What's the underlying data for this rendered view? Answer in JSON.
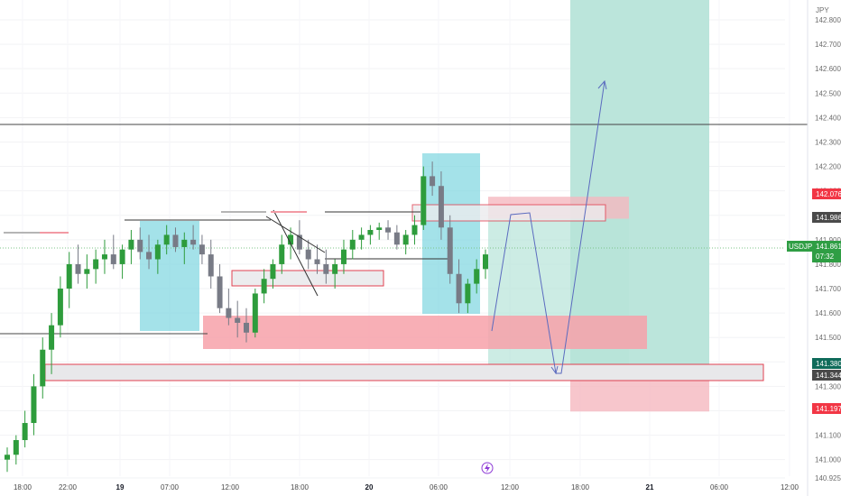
{
  "axis": {
    "currency": "JPY",
    "y_ticks": [
      "142.800",
      "142.700",
      "142.600",
      "142.500",
      "142.400",
      "142.300",
      "142.200",
      "142.100",
      "142.000",
      "141.900",
      "141.800",
      "141.700",
      "141.600",
      "141.500",
      "141.400",
      "141.300",
      "141.200",
      "141.100",
      "141.000",
      "140.925"
    ],
    "x_ticks": [
      {
        "label": "18:00",
        "bold": false
      },
      {
        "label": "22:00",
        "bold": false
      },
      {
        "label": "19",
        "bold": true
      },
      {
        "label": "07:00",
        "bold": false
      },
      {
        "label": "12:00",
        "bold": false
      },
      {
        "label": "18:00",
        "bold": false
      },
      {
        "label": "20",
        "bold": true
      },
      {
        "label": "06:00",
        "bold": false
      },
      {
        "label": "12:00",
        "bold": false
      },
      {
        "label": "18:00",
        "bold": false
      },
      {
        "label": "21",
        "bold": true
      },
      {
        "label": "06:00",
        "bold": false
      },
      {
        "label": "12:00",
        "bold": false
      }
    ]
  },
  "symbol": {
    "name": "USDJPY",
    "price": "141.861",
    "countdown": "07:32",
    "color": "#2f9e44"
  },
  "price_badges": [
    {
      "label": "142.076",
      "color": "#f23645"
    },
    {
      "label": "141.986",
      "color": "#4a4a4a"
    },
    {
      "label": "141.380",
      "color": "#0f6b5a"
    },
    {
      "label": "141.344",
      "color": "#4a4a4a"
    },
    {
      "label": "141.197",
      "color": "#f23645"
    }
  ],
  "colors": {
    "up": "#22ab94",
    "up_body": "#26a69a",
    "down": "#f23645",
    "candle_up": "#2e9c3c",
    "candle_down": "#787b86",
    "highlight": "#7ed6e0",
    "profit": "#b7e4d9",
    "loss": "#f5b8bf",
    "supply": "#f7a1a9"
  },
  "bottom_icon": "lightning-icon",
  "chart_data": {
    "type": "candlestick",
    "title": "",
    "ylim": [
      140.925,
      142.8
    ],
    "long_position": {
      "entry": 141.344,
      "target": 142.8,
      "stop": 141.197
    },
    "short_position": {
      "entry": 141.986,
      "target": 141.38,
      "stop": 142.076
    },
    "candles": [
      [
        141.0,
        141.05,
        140.95,
        141.02
      ],
      [
        141.02,
        141.1,
        140.98,
        141.08
      ],
      [
        141.08,
        141.2,
        141.05,
        141.15
      ],
      [
        141.15,
        141.35,
        141.1,
        141.3
      ],
      [
        141.3,
        141.5,
        141.25,
        141.45
      ],
      [
        141.45,
        141.6,
        141.35,
        141.55
      ],
      [
        141.55,
        141.75,
        141.5,
        141.7
      ],
      [
        141.7,
        141.85,
        141.62,
        141.8
      ],
      [
        141.8,
        141.88,
        141.72,
        141.76
      ],
      [
        141.76,
        141.84,
        141.7,
        141.78
      ],
      [
        141.78,
        141.86,
        141.72,
        141.82
      ],
      [
        141.82,
        141.9,
        141.76,
        141.84
      ],
      [
        141.84,
        141.92,
        141.78,
        141.8
      ],
      [
        141.8,
        141.88,
        141.74,
        141.86
      ],
      [
        141.86,
        141.94,
        141.8,
        141.9
      ],
      [
        141.9,
        141.95,
        141.82,
        141.85
      ],
      [
        141.85,
        141.92,
        141.78,
        141.82
      ],
      [
        141.82,
        141.9,
        141.76,
        141.88
      ],
      [
        141.88,
        141.96,
        141.84,
        141.92
      ],
      [
        141.92,
        141.95,
        141.85,
        141.87
      ],
      [
        141.87,
        141.93,
        141.8,
        141.9
      ],
      [
        141.9,
        141.96,
        141.86,
        141.88
      ],
      [
        141.88,
        141.92,
        141.8,
        141.84
      ],
      [
        141.84,
        141.9,
        141.7,
        141.75
      ],
      [
        141.75,
        141.8,
        141.6,
        141.62
      ],
      [
        141.62,
        141.7,
        141.55,
        141.58
      ],
      [
        141.58,
        141.65,
        141.5,
        141.56
      ],
      [
        141.56,
        141.62,
        141.48,
        141.52
      ],
      [
        141.52,
        141.7,
        141.5,
        141.68
      ],
      [
        141.68,
        141.78,
        141.64,
        141.74
      ],
      [
        141.74,
        141.82,
        141.7,
        141.8
      ],
      [
        141.8,
        141.92,
        141.76,
        141.88
      ],
      [
        141.88,
        141.95,
        141.82,
        141.92
      ],
      [
        141.92,
        141.98,
        141.84,
        141.86
      ],
      [
        141.86,
        141.9,
        141.78,
        141.82
      ],
      [
        141.82,
        141.88,
        141.76,
        141.8
      ],
      [
        141.8,
        141.86,
        141.72,
        141.76
      ],
      [
        141.76,
        141.82,
        141.7,
        141.8
      ],
      [
        141.8,
        141.9,
        141.76,
        141.86
      ],
      [
        141.86,
        141.94,
        141.82,
        141.9
      ],
      [
        141.9,
        141.95,
        141.86,
        141.92
      ],
      [
        141.92,
        141.96,
        141.88,
        141.94
      ],
      [
        141.94,
        141.97,
        141.9,
        141.95
      ],
      [
        141.95,
        141.98,
        141.9,
        141.93
      ],
      [
        141.93,
        141.96,
        141.86,
        141.88
      ],
      [
        141.88,
        141.94,
        141.84,
        141.92
      ],
      [
        141.92,
        142.0,
        141.88,
        141.96
      ],
      [
        141.96,
        142.2,
        141.94,
        142.16
      ],
      [
        142.16,
        142.22,
        142.08,
        142.12
      ],
      [
        142.12,
        142.18,
        141.9,
        141.95
      ],
      [
        141.95,
        142.0,
        141.72,
        141.76
      ],
      [
        141.76,
        141.82,
        141.6,
        141.64
      ],
      [
        141.64,
        141.74,
        141.6,
        141.72
      ],
      [
        141.72,
        141.82,
        141.68,
        141.78
      ],
      [
        141.78,
        141.86,
        141.74,
        141.84
      ]
    ]
  }
}
